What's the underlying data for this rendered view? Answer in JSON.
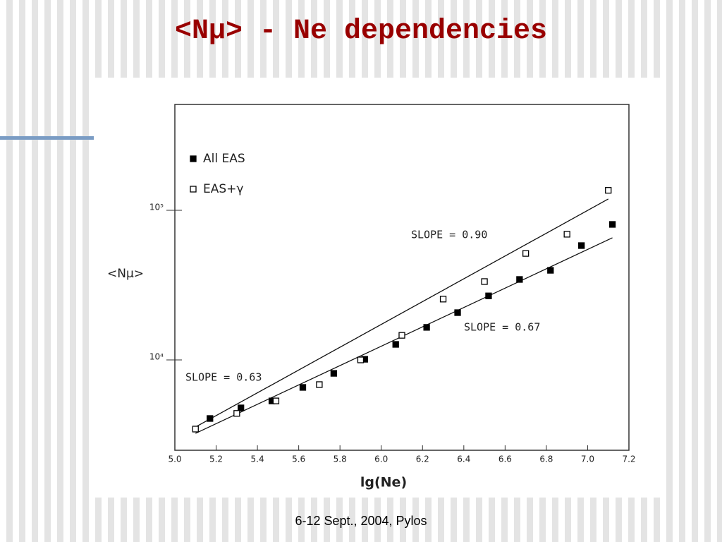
{
  "title": "<Nμ> - Ne dependencies",
  "footer": "6-12 Sept., 2004, Pylos",
  "chart_data": {
    "type": "scatter",
    "xlabel": "lg(Ne)",
    "ylabel": "<Nμ>",
    "log_y": true,
    "grid": false,
    "xlim": [
      5.0,
      7.2
    ],
    "xticks": [
      {
        "value": 5.0,
        "label": "5.0"
      },
      {
        "value": 5.2,
        "label": "5.2"
      },
      {
        "value": 5.4,
        "label": "5.4"
      },
      {
        "value": 5.6,
        "label": "5.6"
      },
      {
        "value": 5.8,
        "label": "5.8"
      },
      {
        "value": 6.0,
        "label": "6.0"
      },
      {
        "value": 6.2,
        "label": "6.2"
      },
      {
        "value": 6.4,
        "label": "6.4"
      },
      {
        "value": 6.6,
        "label": "6.6"
      },
      {
        "value": 6.8,
        "label": "6.8"
      },
      {
        "value": 7.0,
        "label": "7.0"
      },
      {
        "value": 7.2,
        "label": "7.2"
      }
    ],
    "ylim": [
      2490,
      510000
    ],
    "yticks": [
      {
        "value": 10000,
        "label": "10⁴"
      },
      {
        "value": 100000,
        "label": "10⁵"
      }
    ],
    "series": [
      {
        "name": "All EAS",
        "color": "#000000",
        "marker": "filled",
        "x": [
          5.17,
          5.32,
          5.47,
          5.62,
          5.77,
          5.92,
          6.07,
          6.22,
          6.37,
          6.52,
          6.67,
          6.82,
          6.97,
          7.12
        ],
        "values": [
          4060,
          4780,
          5320,
          6550,
          8130,
          10100,
          12700,
          16500,
          20700,
          26800,
          34500,
          39700,
          58100,
          80500
        ]
      },
      {
        "name": "EAS+γ",
        "color": "#000000",
        "marker": "open",
        "x": [
          5.1,
          5.3,
          5.49,
          5.7,
          5.9,
          6.1,
          6.3,
          6.5,
          6.7,
          6.9,
          7.1
        ],
        "values": [
          3450,
          4390,
          5320,
          6840,
          10000,
          14600,
          25500,
          33400,
          51500,
          69200,
          136000
        ]
      }
    ],
    "fits": [
      {
        "x": [
          5.1,
          7.12
        ],
        "values": [
          3230,
          65500
        ]
      },
      {
        "x": [
          5.1,
          7.1
        ],
        "values": [
          3560,
          119000
        ]
      }
    ],
    "annotations": [
      "SLOPE = 0.90",
      "SLOPE = 0.67",
      "SLOPE = 0.63"
    ]
  }
}
